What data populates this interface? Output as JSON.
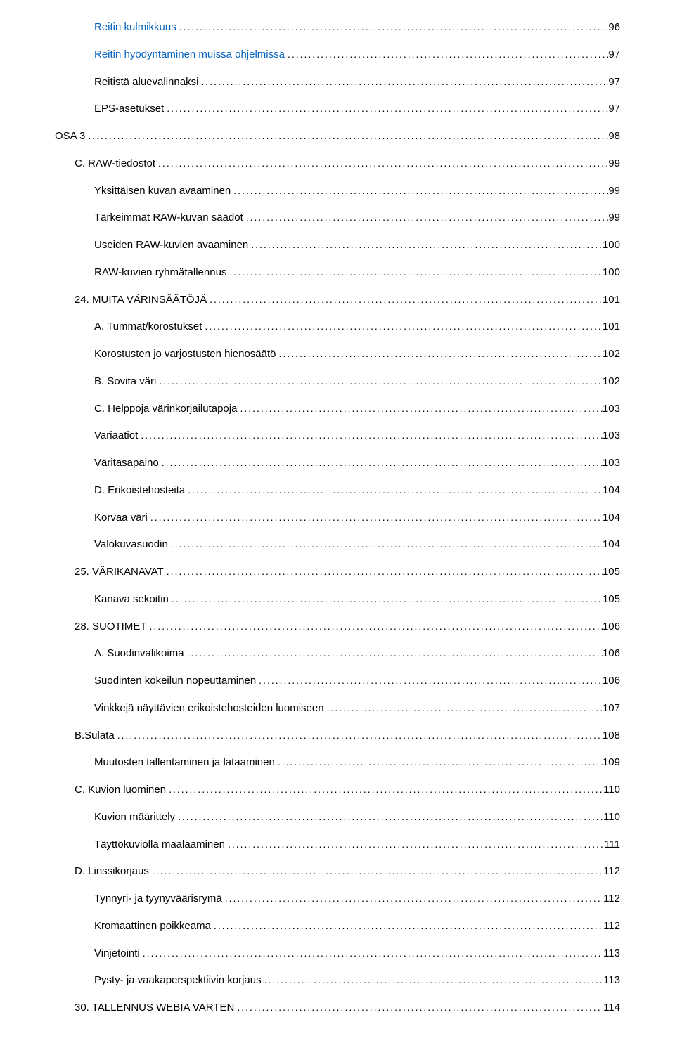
{
  "colors": {
    "text": "#000000",
    "link": "#0563c1",
    "background": "#ffffff"
  },
  "typography": {
    "font_family": "Arial",
    "font_size_pt": 11
  },
  "toc": [
    {
      "label": "Reitin kulmikkuus",
      "page": "96",
      "level": 2,
      "link": true
    },
    {
      "label": "Reitin hyödyntäminen muissa ohjelmissa",
      "page": "97",
      "level": 2,
      "link": true
    },
    {
      "label": "Reitistä aluevalinnaksi",
      "page": "97",
      "level": 2,
      "link": false
    },
    {
      "label": "EPS-asetukset",
      "page": "97",
      "level": 2,
      "link": false
    },
    {
      "label": "OSA 3",
      "page": "98",
      "level": 0,
      "link": false
    },
    {
      "label": "C. RAW-tiedostot",
      "page": "99",
      "level": 1,
      "link": false
    },
    {
      "label": "Yksittäisen kuvan avaaminen",
      "page": "99",
      "level": 2,
      "link": false
    },
    {
      "label": "Tärkeimmät RAW-kuvan säädöt",
      "page": "99",
      "level": 2,
      "link": false
    },
    {
      "label": "Useiden RAW-kuvien avaaminen",
      "page": "100",
      "level": 2,
      "link": false
    },
    {
      "label": "RAW-kuvien ryhmätallennus",
      "page": "100",
      "level": 2,
      "link": false
    },
    {
      "label": "24. MUITA VÄRINSÄÄTÖJÄ",
      "page": "101",
      "level": 1,
      "link": false
    },
    {
      "label": "A. Tummat/korostukset",
      "page": "101",
      "level": 2,
      "link": false
    },
    {
      "label": "Korostusten jo varjostusten hienosäätö",
      "page": "102",
      "level": 2,
      "link": false
    },
    {
      "label": "B. Sovita väri",
      "page": "102",
      "level": 2,
      "link": false
    },
    {
      "label": "C. Helppoja värinkorjailutapoja",
      "page": "103",
      "level": 2,
      "link": false
    },
    {
      "label": "Variaatiot",
      "page": "103",
      "level": 2,
      "link": false
    },
    {
      "label": "Väritasapaino",
      "page": "103",
      "level": 2,
      "link": false
    },
    {
      "label": "D. Erikoistehosteita",
      "page": "104",
      "level": 2,
      "link": false
    },
    {
      "label": "Korvaa väri",
      "page": "104",
      "level": 2,
      "link": false
    },
    {
      "label": "Valokuvasuodin",
      "page": "104",
      "level": 2,
      "link": false
    },
    {
      "label": "25. VÄRIKANAVAT",
      "page": "105",
      "level": 1,
      "link": false
    },
    {
      "label": "Kanava sekoitin",
      "page": "105",
      "level": 2,
      "link": false
    },
    {
      "label": "28. SUOTIMET",
      "page": "106",
      "level": 1,
      "link": false
    },
    {
      "label": "A. Suodinvalikoima",
      "page": "106",
      "level": 2,
      "link": false
    },
    {
      "label": "Suodinten kokeilun nopeuttaminen",
      "page": "106",
      "level": 2,
      "link": false
    },
    {
      "label": "Vinkkejä näyttävien erikoistehosteiden luomiseen",
      "page": "107",
      "level": 2,
      "link": false
    },
    {
      "label": "B.Sulata",
      "page": "108",
      "level": 1,
      "link": false
    },
    {
      "label": "Muutosten tallentaminen ja lataaminen",
      "page": "109",
      "level": 2,
      "link": false
    },
    {
      "label": "C. Kuvion luominen",
      "page": "110",
      "level": 1,
      "link": false
    },
    {
      "label": "Kuvion määrittely",
      "page": "110",
      "level": 2,
      "link": false
    },
    {
      "label": "Täyttökuviolla maalaaminen",
      "page": "111",
      "level": 2,
      "link": false
    },
    {
      "label": "D. Linssikorjaus",
      "page": "112",
      "level": 1,
      "link": false
    },
    {
      "label": "Tynnyri- ja tyynyväärisrymä",
      "page": "112",
      "level": 2,
      "link": false
    },
    {
      "label": "Kromaattinen poikkeama",
      "page": "112",
      "level": 2,
      "link": false
    },
    {
      "label": "Vinjetointi",
      "page": "113",
      "level": 2,
      "link": false
    },
    {
      "label": "Pysty- ja vaakaperspektiivin korjaus",
      "page": "113",
      "level": 2,
      "link": false
    },
    {
      "label": "30. TALLENNUS WEBIA VARTEN",
      "page": "114",
      "level": 1,
      "link": false
    }
  ]
}
